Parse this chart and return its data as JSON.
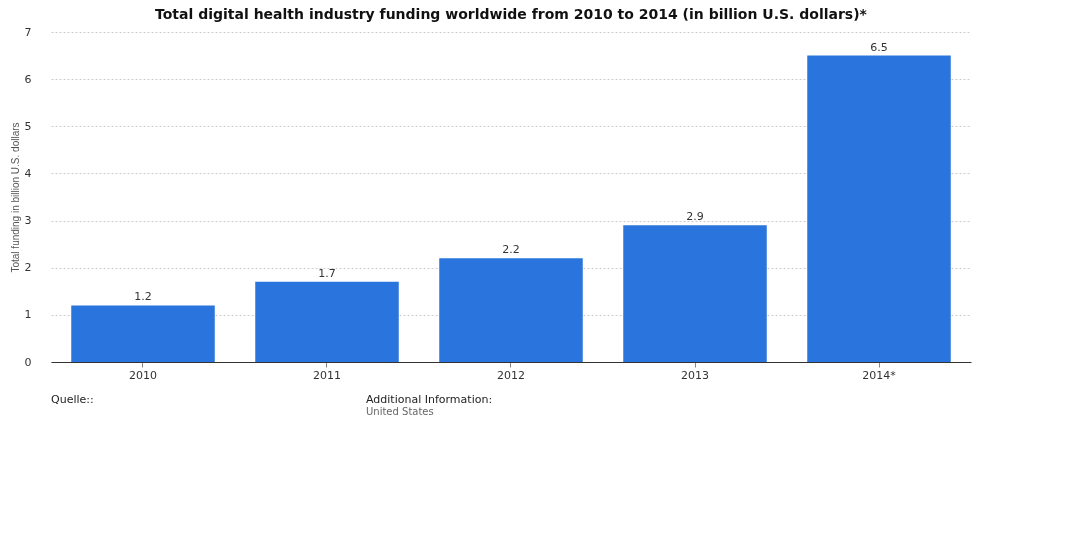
{
  "chart_data": {
    "type": "bar",
    "title": "Total digital health industry funding worldwide from 2010 to 2014 (in billion U.S. dollars)*",
    "ylabel": "Total funding in billion U.S. dollars",
    "categories": [
      "2010",
      "2011",
      "2012",
      "2013",
      "2014*"
    ],
    "values": [
      1.2,
      1.7,
      2.2,
      2.9,
      6.5
    ],
    "color": "#2a75dd",
    "ylim": [
      0,
      7
    ],
    "yticks": [
      0,
      1,
      2,
      3,
      4,
      5,
      6,
      7
    ],
    "grid": "y",
    "data_labels": true,
    "annotations": [
      "Quelle::",
      "Additional Information:",
      "United States"
    ]
  }
}
